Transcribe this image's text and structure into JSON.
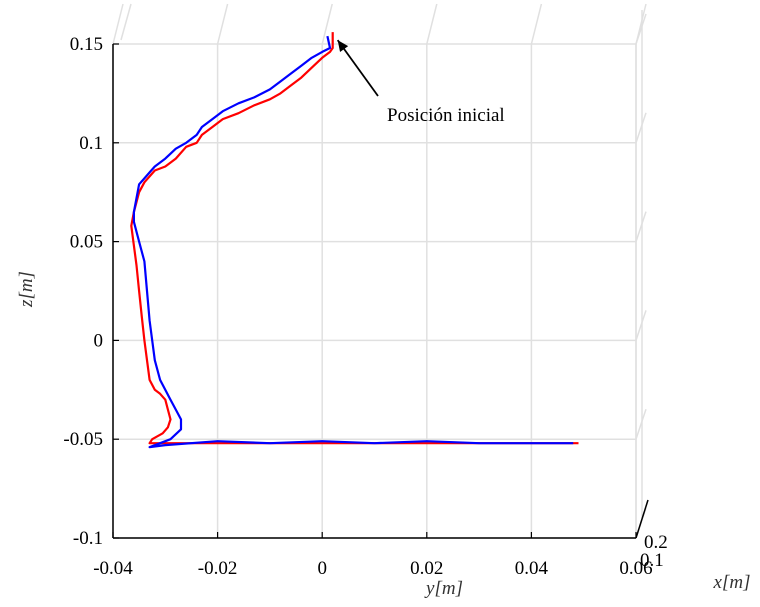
{
  "chart_data": {
    "type": "line",
    "xlabel": "y[m]",
    "ylabel": "z[m]",
    "depth_label": "x[m]",
    "xlim": [
      -0.04,
      0.06
    ],
    "ylim": [
      -0.1,
      0.15
    ],
    "x_ticks": [
      "-0.04",
      "-0.02",
      "0",
      "0.02",
      "0.04",
      "0.06"
    ],
    "y_ticks": [
      "-0.1",
      "-0.05",
      "0",
      "0.05",
      "0.1",
      "0.15"
    ],
    "depth_ticks": [
      "0.1",
      "0.2"
    ],
    "grid": true,
    "annotation": {
      "text": "Posición inicial",
      "x": 0.002,
      "y": 0.155
    },
    "colors": {
      "series_a": "#ff0000",
      "series_b": "#0000ff",
      "axis": "#000000",
      "grid": "#e0e0e0"
    },
    "series": [
      {
        "color": "#ff0000",
        "x": [
          0.002,
          0.002,
          0.0015,
          0.0,
          -0.002,
          -0.004,
          -0.006,
          -0.008,
          -0.01,
          -0.013,
          -0.016,
          -0.019,
          -0.021,
          -0.023,
          -0.024,
          -0.026,
          -0.028,
          -0.03,
          -0.032,
          -0.033,
          -0.034,
          -0.035,
          -0.0355,
          -0.036,
          -0.0365,
          -0.036,
          -0.0355,
          -0.035,
          -0.0345,
          -0.034,
          -0.0335,
          -0.033,
          -0.032,
          -0.031,
          -0.03,
          -0.0295,
          -0.029,
          -0.0295,
          -0.0305,
          -0.0325,
          -0.033,
          -0.03,
          -0.02,
          -0.01,
          0.0,
          0.01,
          0.02,
          0.03,
          0.04,
          0.049
        ],
        "y": [
          0.156,
          0.148,
          0.146,
          0.143,
          0.138,
          0.133,
          0.129,
          0.125,
          0.122,
          0.119,
          0.115,
          0.112,
          0.108,
          0.104,
          0.1,
          0.098,
          0.092,
          0.088,
          0.086,
          0.083,
          0.08,
          0.075,
          0.07,
          0.065,
          0.058,
          0.048,
          0.038,
          0.025,
          0.012,
          0.0,
          -0.01,
          -0.02,
          -0.025,
          -0.027,
          -0.03,
          -0.035,
          -0.04,
          -0.044,
          -0.047,
          -0.05,
          -0.052,
          -0.052,
          -0.052,
          -0.052,
          -0.052,
          -0.052,
          -0.052,
          -0.052,
          -0.052,
          -0.052
        ]
      },
      {
        "color": "#0000ff",
        "x": [
          0.001,
          0.0015,
          0.0,
          -0.002,
          -0.004,
          -0.006,
          -0.008,
          -0.01,
          -0.013,
          -0.016,
          -0.019,
          -0.021,
          -0.023,
          -0.024,
          -0.026,
          -0.028,
          -0.03,
          -0.032,
          -0.033,
          -0.034,
          -0.035,
          -0.036,
          -0.036,
          -0.035,
          -0.034,
          -0.0335,
          -0.033,
          -0.0325,
          -0.032,
          -0.031,
          -0.029,
          -0.028,
          -0.027,
          -0.027,
          -0.029,
          -0.031,
          -0.033,
          -0.03,
          -0.02,
          -0.01,
          0.0,
          0.01,
          0.02,
          0.03,
          0.04,
          0.048
        ],
        "y": [
          0.154,
          0.148,
          0.146,
          0.143,
          0.139,
          0.135,
          0.131,
          0.127,
          0.123,
          0.12,
          0.116,
          0.112,
          0.108,
          0.104,
          0.1,
          0.097,
          0.092,
          0.088,
          0.085,
          0.082,
          0.079,
          0.065,
          0.06,
          0.05,
          0.04,
          0.025,
          0.01,
          0.0,
          -0.01,
          -0.02,
          -0.03,
          -0.035,
          -0.04,
          -0.045,
          -0.05,
          -0.052,
          -0.054,
          -0.053,
          -0.051,
          -0.052,
          -0.051,
          -0.052,
          -0.051,
          -0.052,
          -0.052,
          -0.052
        ]
      }
    ]
  }
}
